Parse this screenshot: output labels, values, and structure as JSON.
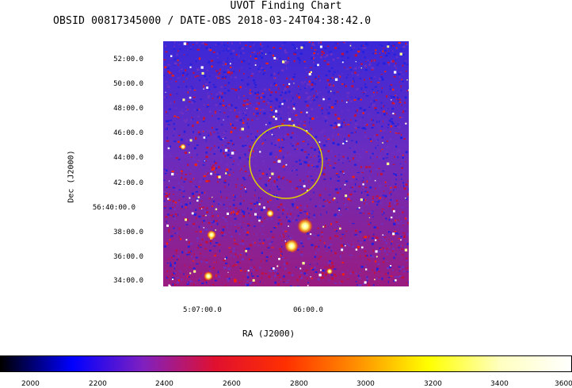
{
  "title": "UVOT Finding Chart",
  "subtitle": "OBSID 00817345000 / DATE-OBS 2018-03-24T04:38:42.0",
  "axes": {
    "ylabel": "Dec (J2000)",
    "xlabel": "RA (J2000)",
    "y_ticks": [
      "52:00.0",
      "50:00.0",
      "48:00.0",
      "46:00.0",
      "44:00.0",
      "42:00.0",
      "56:40:00.0",
      "38:00.0",
      "36:00.0",
      "34:00.0"
    ],
    "x_ticks": [
      "5:07:00.0",
      "06:00.0"
    ]
  },
  "colorbar": {
    "ticks": [
      "2000",
      "2200",
      "2400",
      "2600",
      "2800",
      "3000",
      "3200",
      "3400",
      "3600"
    ],
    "colors": [
      "#000000",
      "#0000ff",
      "#8020c0",
      "#e01030",
      "#ff3000",
      "#ff9000",
      "#ffff00",
      "#ffffc0",
      "#ffffff"
    ]
  },
  "image": {
    "region_circle_color": "#e0d000",
    "background_colors": [
      "#2020e0",
      "#7030c0",
      "#c01040",
      "#ff2000"
    ]
  }
}
